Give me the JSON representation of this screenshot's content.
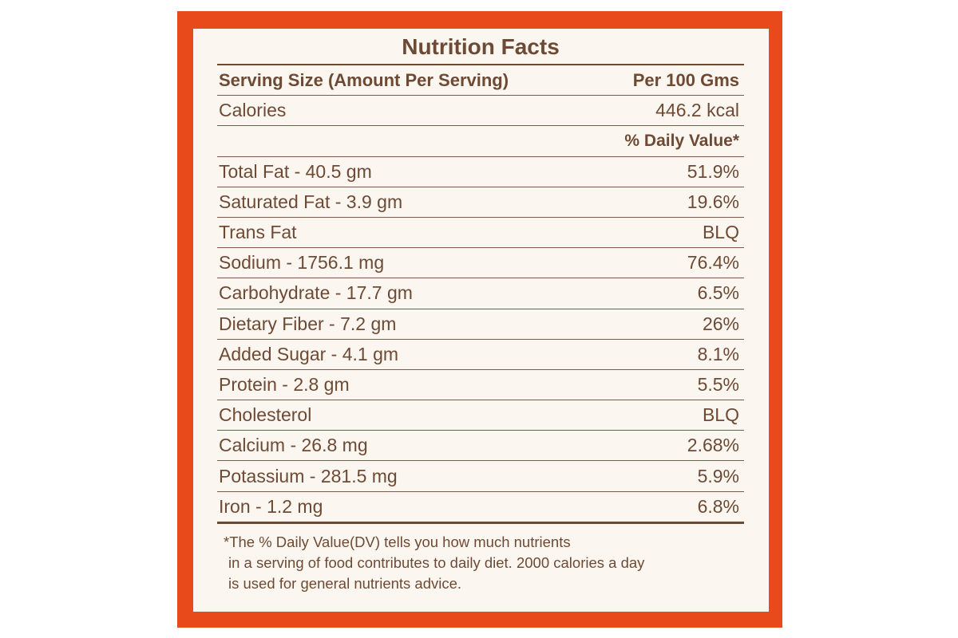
{
  "colors": {
    "border": "#e94a1c",
    "panel": "#fbf7f0",
    "text": "#6e4a35"
  },
  "label": {
    "title": "Nutrition Facts",
    "serving_size_label": "Serving Size (Amount Per Serving)",
    "serving_size_value": "Per 100 Gms",
    "calories_label": "Calories",
    "calories_value": "446.2 kcal",
    "daily_value_header": "% Daily Value*",
    "nutrients": [
      {
        "name": "Total Fat - 40.5 gm",
        "dv": "51.9%"
      },
      {
        "name": "Saturated Fat - 3.9 gm",
        "dv": "19.6%"
      },
      {
        "name": "Trans Fat",
        "dv": "BLQ"
      },
      {
        "name": "Sodium - 1756.1 mg",
        "dv": "76.4%"
      },
      {
        "name": "Carbohydrate - 17.7 gm",
        "dv": "6.5%"
      },
      {
        "name": "Dietary Fiber - 7.2 gm",
        "dv": "26%"
      },
      {
        "name": "Added Sugar - 4.1 gm",
        "dv": "8.1%"
      },
      {
        "name": "Protein - 2.8 gm",
        "dv": "5.5%"
      },
      {
        "name": "Cholesterol",
        "dv": "BLQ"
      },
      {
        "name": "Calcium - 26.8 mg",
        "dv": "2.68%"
      },
      {
        "name": "Potassium - 281.5 mg",
        "dv": "5.9%"
      },
      {
        "name": "Iron - 1.2 mg",
        "dv": "6.8%"
      }
    ],
    "footnote_lines": [
      "*The % Daily Value(DV) tells you how much nutrients",
      "in a serving of food contributes to daily diet. 2000 calories a day",
      "is used for general nutrients advice."
    ]
  }
}
